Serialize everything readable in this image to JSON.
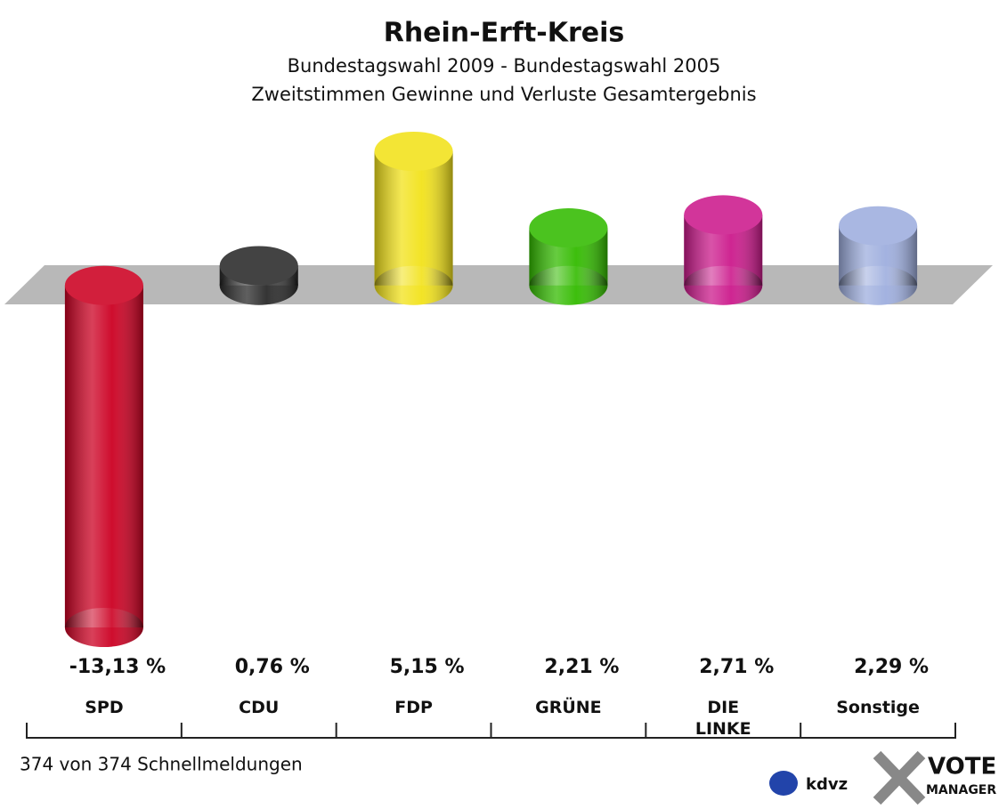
{
  "chart_data": {
    "type": "bar",
    "title": "Rhein-Erft-Kreis",
    "subtitle": [
      "Bundestagswahl 2009 - Bundestagswahl 2005",
      "Zweitstimmen Gewinne und Verluste Gesamtergebnis"
    ],
    "categories": [
      "SPD",
      "CDU",
      "FDP",
      "GRÜNE",
      "DIE LINKE",
      "Sonstige"
    ],
    "values": [
      -13.13,
      0.76,
      5.15,
      2.21,
      2.71,
      2.29
    ],
    "value_labels": [
      "-13,13 %",
      "0,76 %",
      "5,15 %",
      "2,21 %",
      "2,71 %",
      "2,29 %"
    ],
    "colors": [
      "#cc0022",
      "#2a2a2a",
      "#f2e21a",
      "#33bb00",
      "#cc1a8c",
      "#9eaede"
    ],
    "footer": "374 von 374 Schnellmeldungen",
    "logos": [
      "kdvz",
      "VOTE",
      "MANAGER"
    ]
  }
}
